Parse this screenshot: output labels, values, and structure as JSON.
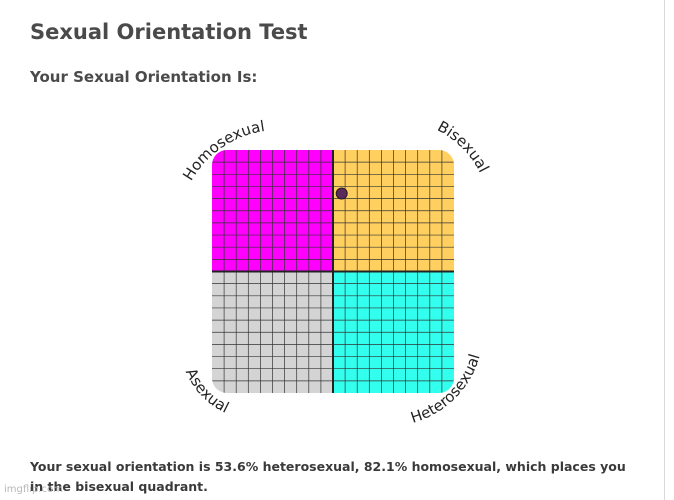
{
  "page": {
    "title": "Sexual Orientation Test",
    "subtitle": "Your Sexual Orientation Is:",
    "result_text": "Your sexual orientation is 53.6% heterosexual, 82.1% homosexual, which places you in the bisexual quadrant.",
    "watermark": "imgflip.com"
  },
  "chart_data": {
    "type": "scatter",
    "quadrants": {
      "top_left": {
        "label": "Homosexual",
        "color": "#ff00ff"
      },
      "top_right": {
        "label": "Bisexual",
        "color": "#ffd060"
      },
      "bottom_left": {
        "label": "Asexual",
        "color": "#d4d4d4"
      },
      "bottom_right": {
        "label": "Heterosexual",
        "color": "#33ffee"
      }
    },
    "x_axis": {
      "quantity": "heterosexual",
      "unit": "%",
      "range": [
        0,
        100
      ]
    },
    "y_axis": {
      "quantity": "homosexual",
      "unit": "%",
      "range": [
        0,
        100
      ]
    },
    "points": [
      {
        "heterosexual": 53.6,
        "homosexual": 82.1,
        "color": "#5a2a5a"
      }
    ],
    "grid": true,
    "grid_divisions": 20
  }
}
